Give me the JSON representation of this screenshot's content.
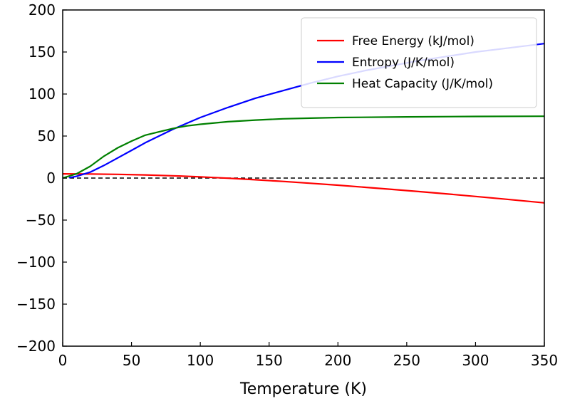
{
  "chart_data": {
    "type": "line",
    "title": "",
    "xlabel": "Temperature (K)",
    "ylabel": "",
    "xlim": [
      0,
      350
    ],
    "ylim": [
      -200,
      200
    ],
    "x_ticks": [
      0,
      50,
      100,
      150,
      200,
      250,
      300,
      350
    ],
    "y_ticks": [
      -200,
      -150,
      -100,
      -50,
      0,
      50,
      100,
      150,
      200
    ],
    "x_tick_labels": [
      "0",
      "50",
      "100",
      "150",
      "200",
      "250",
      "300",
      "350"
    ],
    "y_tick_labels": [
      "−200",
      "−150",
      "−100",
      "−50",
      "0",
      "50",
      "100",
      "150",
      "200"
    ],
    "grid": false,
    "legend_position": "top-right",
    "reference_line": {
      "y": 0,
      "style": "dashed",
      "color": "#000000"
    },
    "series": [
      {
        "name": "Free Energy (kJ/mol)",
        "color": "#ff0000",
        "x": [
          0,
          20,
          40,
          60,
          80,
          100,
          120,
          140,
          160,
          180,
          200,
          220,
          240,
          260,
          280,
          300,
          320,
          350
        ],
        "y": [
          5,
          4.8,
          4.4,
          3.7,
          2.7,
          1.4,
          -0.2,
          -2.0,
          -4.0,
          -6.2,
          -8.5,
          -11.0,
          -13.6,
          -16.2,
          -19.0,
          -21.9,
          -24.8,
          -29.5
        ]
      },
      {
        "name": "Entropy (J/K/mol)",
        "color": "#0000ff",
        "x": [
          5,
          10,
          20,
          30,
          40,
          50,
          60,
          70,
          80,
          90,
          100,
          120,
          140,
          160,
          180,
          200,
          220,
          240,
          260,
          280,
          300,
          320,
          350
        ],
        "y": [
          0.5,
          2,
          7,
          15,
          24,
          33,
          42,
          50,
          58,
          65,
          72,
          84,
          95,
          104,
          113,
          121,
          128,
          134,
          140,
          145,
          150,
          154,
          160
        ]
      },
      {
        "name": "Heat Capacity (J/K/mol)",
        "color": "#008000",
        "x": [
          0,
          10,
          20,
          30,
          40,
          50,
          60,
          70,
          80,
          90,
          100,
          120,
          140,
          160,
          180,
          200,
          250,
          300,
          350
        ],
        "y": [
          0,
          5,
          14,
          26,
          36,
          44,
          51,
          55,
          59,
          62,
          64,
          67,
          69,
          70.5,
          71.3,
          72,
          72.8,
          73.3,
          73.6
        ]
      }
    ]
  }
}
